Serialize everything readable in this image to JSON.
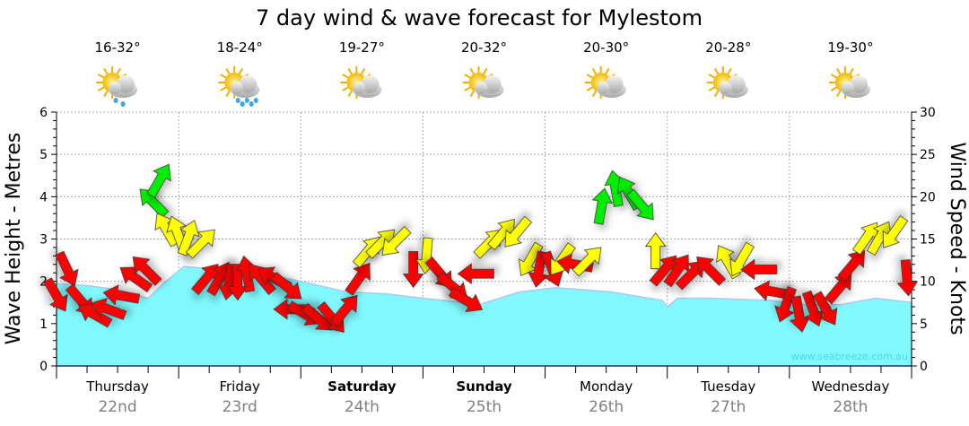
{
  "chart_data": {
    "type": "area",
    "title": "7 day wind & wave forecast for Mylestom",
    "ylabel": "Wave Height - Metres",
    "y2label": "Wind Speed - Knots",
    "ylim": [
      0,
      6
    ],
    "y2lim": [
      0,
      30
    ],
    "yticks": [
      "0",
      "1",
      "2",
      "3",
      "4",
      "5",
      "6"
    ],
    "y2ticks": [
      "0",
      "5",
      "10",
      "15",
      "20",
      "25",
      "30"
    ],
    "grid": true,
    "watermark": "www.seabreeze.com.au",
    "days": [
      {
        "day": "Thursday",
        "date": "22nd",
        "temp": "16-32°",
        "icon": "sun-cloud-rain-icon",
        "bold": false
      },
      {
        "day": "Friday",
        "date": "23rd",
        "temp": "18-24°",
        "icon": "sun-cloud-heavy-rain-icon",
        "bold": false
      },
      {
        "day": "Saturday",
        "date": "24th",
        "temp": "19-27°",
        "icon": "sun-cloud-icon",
        "bold": true
      },
      {
        "day": "Sunday",
        "date": "25th",
        "temp": "20-32°",
        "icon": "sun-cloud-icon",
        "bold": true
      },
      {
        "day": "Monday",
        "date": "26th",
        "temp": "20-30°",
        "icon": "sun-cloud-icon",
        "bold": false
      },
      {
        "day": "Tuesday",
        "date": "27th",
        "temp": "20-28°",
        "icon": "sun-cloud-icon",
        "bold": false
      },
      {
        "day": "Wednesday",
        "date": "28th",
        "temp": "19-30°",
        "icon": "sun-cloud-icon",
        "bold": false
      }
    ],
    "wave_series": {
      "name": "Wave Height (m)",
      "color": "#80f8fc",
      "points": [
        [
          0,
          1.95
        ],
        [
          6,
          1.9
        ],
        [
          12,
          1.8
        ],
        [
          18,
          1.6
        ],
        [
          21,
          1.95
        ],
        [
          25,
          2.35
        ],
        [
          30,
          2.3
        ],
        [
          40,
          2.2
        ],
        [
          48,
          2.0
        ],
        [
          57,
          1.75
        ],
        [
          65,
          1.7
        ],
        [
          72,
          1.6
        ],
        [
          80,
          1.5
        ],
        [
          83,
          1.45
        ],
        [
          91,
          1.75
        ],
        [
          98,
          1.85
        ],
        [
          109,
          1.75
        ],
        [
          119,
          1.55
        ],
        [
          120,
          1.4
        ],
        [
          122,
          1.6
        ],
        [
          128,
          1.6
        ],
        [
          140,
          1.55
        ],
        [
          147,
          1.45
        ],
        [
          154,
          1.45
        ],
        [
          161,
          1.6
        ],
        [
          168,
          1.5
        ]
      ]
    },
    "wind_series": {
      "name": "Wind Speed (knots)",
      "colors": {
        "light": "#ff0000",
        "moderate": "#ffff00",
        "strong": "#00ee00"
      },
      "thresholds_knots": [
        12.2,
        18
      ],
      "points": [
        [
          0,
          8.3,
          150
        ],
        [
          2.1,
          11.4,
          155
        ],
        [
          4.8,
          7.7,
          140
        ],
        [
          7.4,
          6.1,
          300
        ],
        [
          10.1,
          6.7,
          290
        ],
        [
          12.7,
          8.3,
          280
        ],
        [
          15.4,
          10.4,
          305
        ],
        [
          17.5,
          11.4,
          315
        ],
        [
          18.9,
          19.4,
          315
        ],
        [
          20.3,
          22,
          30
        ],
        [
          21.5,
          16.2,
          330
        ],
        [
          23.8,
          15.7,
          340
        ],
        [
          25.9,
          15.2,
          20
        ],
        [
          28.6,
          14.6,
          45
        ],
        [
          29.5,
          10.4,
          40
        ],
        [
          32.1,
          10.4,
          30
        ],
        [
          33.9,
          9.9,
          190
        ],
        [
          35.6,
          9.9,
          180
        ],
        [
          37.4,
          10.9,
          350
        ],
        [
          40.1,
          10.4,
          320
        ],
        [
          42.7,
          10.4,
          300
        ],
        [
          45.4,
          9.3,
          130
        ],
        [
          46.2,
          6.7,
          270
        ],
        [
          48.9,
          6.1,
          120
        ],
        [
          51.5,
          5.6,
          130
        ],
        [
          54.2,
          5.6,
          140
        ],
        [
          56.8,
          6.7,
          40
        ],
        [
          59.5,
          10.4,
          35
        ],
        [
          61.2,
          13.6,
          40
        ],
        [
          63.9,
          14.6,
          45
        ],
        [
          66.5,
          14.6,
          225
        ],
        [
          70.1,
          11.4,
          180
        ],
        [
          72.7,
          13.0,
          185
        ],
        [
          75.4,
          10.9,
          140
        ],
        [
          78,
          9.3,
          130
        ],
        [
          80.6,
          7.7,
          120
        ],
        [
          82.4,
          10.9,
          270
        ],
        [
          85.1,
          14.6,
          45
        ],
        [
          87.7,
          15.7,
          40
        ],
        [
          90.4,
          15.7,
          220
        ],
        [
          93,
          12.5,
          210
        ],
        [
          94.8,
          11.4,
          190
        ],
        [
          97.4,
          11.4,
          160
        ],
        [
          99.2,
          12.5,
          215
        ],
        [
          101.8,
          12.0,
          280
        ],
        [
          104.5,
          12.5,
          45
        ],
        [
          107.1,
          18.9,
          10
        ],
        [
          109.8,
          21.0,
          350
        ],
        [
          112.4,
          20.5,
          330
        ],
        [
          115,
          18.9,
          140
        ],
        [
          117.7,
          13.6,
          0
        ],
        [
          119.5,
          11.4,
          40
        ],
        [
          122.1,
          11.4,
          35
        ],
        [
          124.8,
          10.9,
          45
        ],
        [
          128.3,
          11.4,
          315
        ],
        [
          131.8,
          12.4,
          330
        ],
        [
          134.5,
          12.5,
          210
        ],
        [
          138,
          11.4,
          270
        ],
        [
          140.6,
          8.8,
          280
        ],
        [
          143.3,
          7.2,
          200
        ],
        [
          145.9,
          6.1,
          170
        ],
        [
          148.6,
          6.7,
          160
        ],
        [
          151.2,
          6.7,
          150
        ],
        [
          153.9,
          9.3,
          40
        ],
        [
          156.5,
          12.0,
          40
        ],
        [
          159.2,
          15.2,
          35
        ],
        [
          161.8,
          15.2,
          30
        ],
        [
          164.5,
          15.7,
          215
        ],
        [
          167.1,
          10.4,
          175
        ]
      ]
    }
  }
}
